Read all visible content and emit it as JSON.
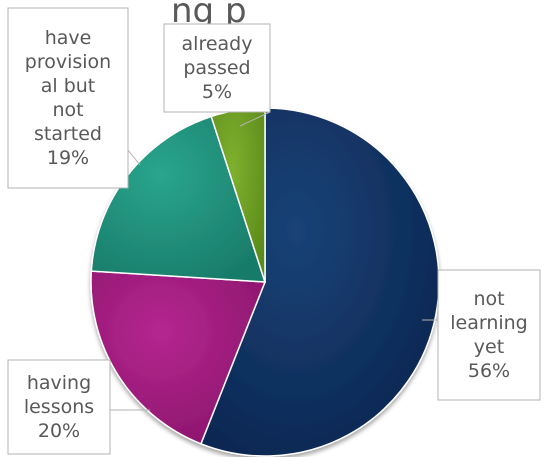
{
  "chart_data": {
    "type": "pie",
    "title": "ng p",
    "slices": [
      {
        "label": [
          "not",
          "learning",
          "yet"
        ],
        "value": 56,
        "value_label": "56%",
        "color": "#0d2e5c"
      },
      {
        "label": [
          "having",
          "lessons"
        ],
        "value": 20,
        "value_label": "20%",
        "color": "#9b1b79"
      },
      {
        "label": [
          "have",
          "provision",
          "al but",
          "not",
          "started"
        ],
        "value": 19,
        "value_label": "19%",
        "color": "#1f8f7a"
      },
      {
        "label": [
          "already",
          "passed"
        ],
        "value": 5,
        "value_label": "5%",
        "color": "#6a9a22"
      }
    ],
    "start_angle_deg": 0,
    "direction": "clockwise",
    "legend": "none"
  }
}
